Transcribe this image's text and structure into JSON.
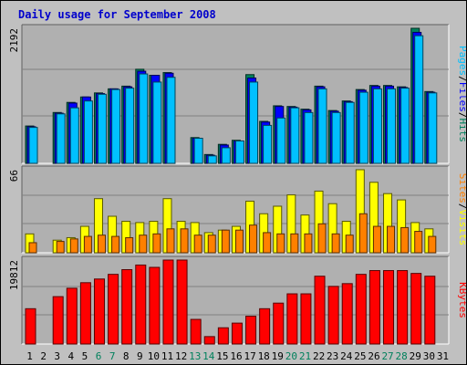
{
  "title": "Daily usage for September 2008",
  "colors": {
    "hits": "#00805c",
    "files": "#0000ff",
    "pages": "#00c0ff",
    "visits": "#ffff00",
    "sites": "#ff8000",
    "kbytes": "#ff0000",
    "weekend_label": "#00805c",
    "background": "#c0c0c0",
    "panel": "#b0b0b0"
  },
  "chart_data": [
    {
      "type": "bar",
      "panel": "hits-files-pages",
      "ymax_label": "2192",
      "ylim": [
        0,
        2192
      ],
      "right_labels": [
        "Pages",
        "Files",
        "Hits"
      ],
      "categories": [
        "1",
        "2",
        "3",
        "4",
        "5",
        "6",
        "7",
        "8",
        "9",
        "10",
        "11",
        "12",
        "13",
        "14",
        "15",
        "16",
        "17",
        "18",
        "19",
        "20",
        "21",
        "22",
        "23",
        "24",
        "25",
        "26",
        "27",
        "28",
        "29",
        "30",
        "31"
      ],
      "series": [
        {
          "name": "Hits",
          "values": [
            606,
            null,
            825,
            989,
            1077,
            1143,
            1209,
            1253,
            1527,
            1429,
            1473,
            null,
            418,
            143,
            308,
            374,
            1440,
            681,
            934,
            923,
            879,
            1253,
            857,
            1012,
            1198,
            1264,
            1264,
            1242,
            2192,
            1165,
            null
          ]
        },
        {
          "name": "Files",
          "values": [
            594,
            null,
            814,
            978,
            1077,
            1132,
            1209,
            1242,
            1495,
            1429,
            1462,
            null,
            407,
            132,
            297,
            363,
            1385,
            670,
            923,
            912,
            868,
            1242,
            846,
            1001,
            1187,
            1253,
            1253,
            1231,
            2126,
            1154,
            null
          ]
        },
        {
          "name": "Pages",
          "values": [
            583,
            null,
            803,
            901,
            1012,
            1121,
            1198,
            1220,
            1451,
            1319,
            1396,
            null,
            407,
            121,
            253,
            363,
            1319,
            616,
            736,
            901,
            824,
            1209,
            824,
            989,
            1154,
            1209,
            1209,
            1220,
            2071,
            1143,
            null
          ]
        }
      ]
    },
    {
      "type": "bar",
      "panel": "visits-sites",
      "ymax_label": "66",
      "ylim": [
        0,
        66
      ],
      "right_labels": [
        "Sites",
        "Visits"
      ],
      "categories": [
        "1",
        "2",
        "3",
        "4",
        "5",
        "6",
        "7",
        "8",
        "9",
        "10",
        "11",
        "12",
        "13",
        "14",
        "15",
        "16",
        "17",
        "18",
        "19",
        "20",
        "21",
        "22",
        "23",
        "24",
        "25",
        "26",
        "27",
        "28",
        "29",
        "30",
        "31"
      ],
      "series": [
        {
          "name": "Visits",
          "values": [
            15,
            null,
            10,
            12,
            21,
            43,
            29,
            25,
            24,
            25,
            43,
            25,
            24,
            16,
            18,
            21,
            41,
            31,
            37,
            46,
            30,
            49,
            39,
            25,
            66,
            56,
            47,
            42,
            24,
            19,
            null
          ]
        },
        {
          "name": "Sites",
          "values": [
            8,
            null,
            9,
            11,
            13,
            14,
            13,
            12,
            14,
            15,
            19,
            19,
            14,
            14,
            18,
            18,
            22,
            16,
            15,
            15,
            15,
            23,
            15,
            14,
            31,
            21,
            21,
            20,
            17,
            13,
            null
          ]
        }
      ]
    },
    {
      "type": "bar",
      "panel": "kbytes",
      "ymax_label": "19812",
      "ylim": [
        0,
        19812
      ],
      "right_labels": [
        "KBytes"
      ],
      "categories": [
        "1",
        "2",
        "3",
        "4",
        "5",
        "6",
        "7",
        "8",
        "9",
        "10",
        "11",
        "12",
        "13",
        "14",
        "15",
        "16",
        "17",
        "18",
        "19",
        "20",
        "21",
        "22",
        "23",
        "24",
        "25",
        "26",
        "27",
        "28",
        "29",
        "30",
        "31"
      ],
      "series": [
        {
          "name": "KBytes",
          "values": [
            8330,
            null,
            11180,
            13160,
            14470,
            15340,
            16440,
            17550,
            18640,
            18090,
            19812,
            19812,
            5810,
            1750,
            3830,
            4930,
            6570,
            8330,
            9650,
            11840,
            11840,
            16000,
            13600,
            14250,
            16440,
            17330,
            17330,
            17330,
            16660,
            16000,
            null
          ]
        }
      ]
    }
  ],
  "weekend_days": [
    6,
    7,
    13,
    14,
    20,
    21,
    27,
    28
  ]
}
